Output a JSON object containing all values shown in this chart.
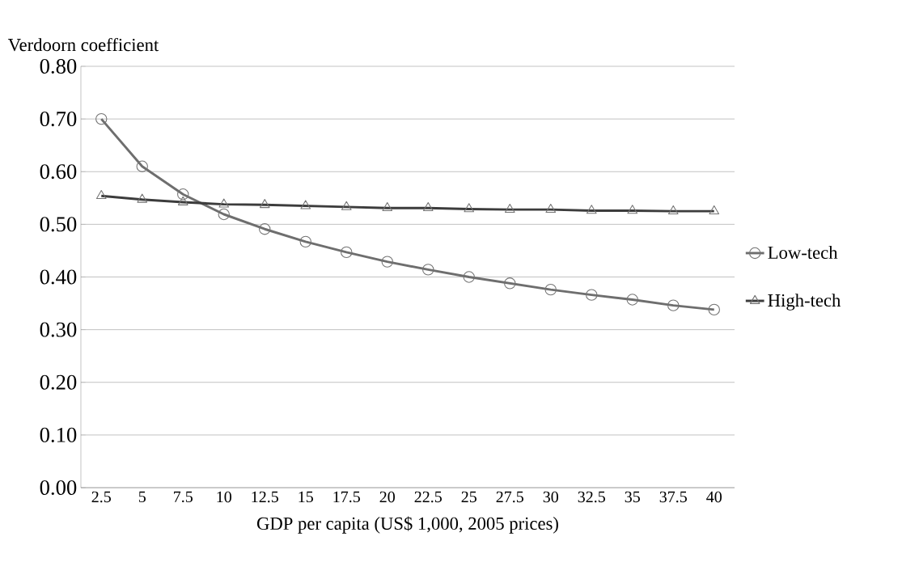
{
  "chart_data": {
    "type": "line",
    "ylabel": "Verdoorn coefficient",
    "xlabel": "GDP per capita (US$ 1,000, 2005 prices)",
    "categories": [
      "2.5",
      "5",
      "7.5",
      "10",
      "12.5",
      "15",
      "17.5",
      "20",
      "22.5",
      "25",
      "27.5",
      "30",
      "32.5",
      "35",
      "37.5",
      "40"
    ],
    "series": [
      {
        "name": "Low-tech",
        "color": "#6e6e6e",
        "marker": "circle",
        "values": [
          0.7,
          0.61,
          0.557,
          0.519,
          0.491,
          0.467,
          0.447,
          0.429,
          0.414,
          0.4,
          0.388,
          0.376,
          0.366,
          0.357,
          0.346,
          0.338
        ]
      },
      {
        "name": "High-tech",
        "color": "#3c3c3c",
        "marker": "triangle",
        "values": [
          0.554,
          0.547,
          0.542,
          0.538,
          0.537,
          0.535,
          0.533,
          0.531,
          0.531,
          0.529,
          0.528,
          0.528,
          0.526,
          0.526,
          0.525,
          0.525
        ]
      }
    ],
    "ylim": [
      0,
      0.8
    ],
    "yticks": [
      {
        "value": 0,
        "label": "0.00"
      },
      {
        "value": 0.1,
        "label": "0.10"
      },
      {
        "value": 0.2,
        "label": "0.20"
      },
      {
        "value": 0.3,
        "label": "0.30"
      },
      {
        "value": 0.4,
        "label": "0.40"
      },
      {
        "value": 0.5,
        "label": "0.50"
      },
      {
        "value": 0.6,
        "label": "0.60"
      },
      {
        "value": 0.7,
        "label": "0.70"
      },
      {
        "value": 0.8,
        "label": "0.80"
      }
    ],
    "grid": "y",
    "legend": "right",
    "line_style": "solid"
  }
}
